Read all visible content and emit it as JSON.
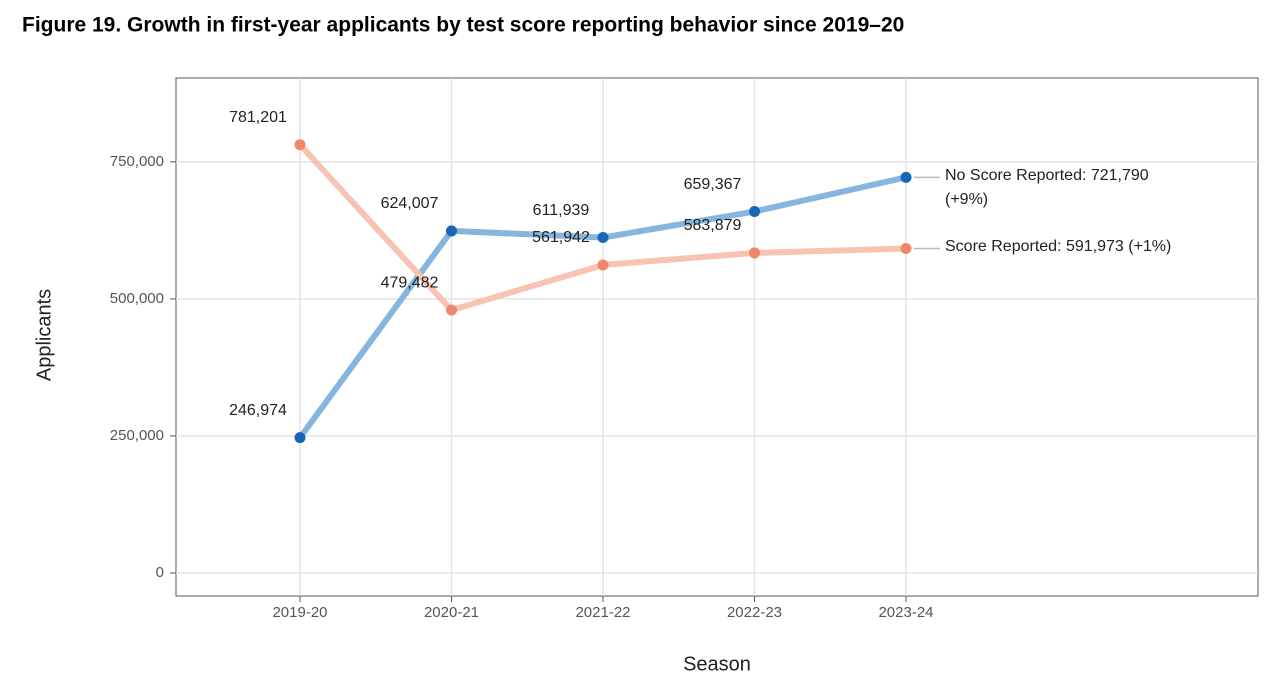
{
  "chart_data": {
    "type": "line",
    "title": "Figure 19. Growth in first-year applicants by test score reporting behavior since 2019–20",
    "x_label": "Season",
    "y_label": "Applicants",
    "categories": [
      "2019-20",
      "2020-21",
      "2021-22",
      "2022-23",
      "2023-24"
    ],
    "series": [
      {
        "name": "No Score Reported: 721,790 (+9%)",
        "color": "#86b6e0",
        "point_color": "#1766b8",
        "values": [
          246974,
          624007,
          611939,
          659367,
          721790
        ],
        "value_labels": [
          "246,974",
          "624,007",
          "611,939",
          "659,367",
          null
        ]
      },
      {
        "name": "Score Reported: 591,973 (+1%)",
        "color": "#f8c3b2",
        "point_color": "#f0876b",
        "values": [
          781201,
          479482,
          561942,
          583879,
          591973
        ],
        "value_labels": [
          "781,201",
          "479,482",
          "561,942",
          "583,879",
          null
        ]
      }
    ],
    "ylim": [
      -42000,
      903000
    ],
    "yticks": [
      0,
      {
        "value": 250000,
        "label": "250,000"
      },
      {
        "value": 500000,
        "label": "500,000"
      },
      {
        "value": 750000,
        "label": "750,000"
      }
    ],
    "grid": true
  }
}
